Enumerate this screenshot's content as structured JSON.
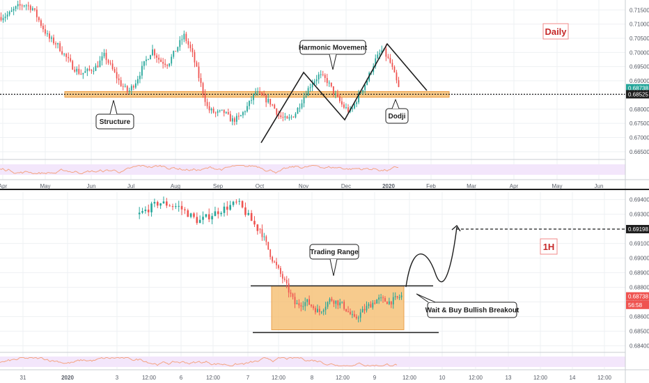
{
  "colors": {
    "up": "#26a69a",
    "down": "#ef5350",
    "zone_fill": "#f6c27a",
    "zone_stroke": "#e8912e",
    "rsi_band": "#f3e6fb",
    "rsi_line": "#f4a582",
    "grid": "#eef0f3",
    "axis_text": "#555a64",
    "label_red": "#c62828"
  },
  "chart_data": [
    {
      "type": "candlestick",
      "name": "daily-panel",
      "timeframe_label": "Daily",
      "x_tick_labels": [
        "Apr",
        "May",
        "Jun",
        "Jul",
        "Aug",
        "Sep",
        "Oct",
        "Nov",
        "Dec",
        "2020",
        "Feb",
        "Mar",
        "Apr",
        "May",
        "Jun"
      ],
      "y_tick_labels": [
        "0.71500",
        "0.71000",
        "0.70500",
        "0.70000",
        "0.69500",
        "0.69000",
        "0.68500",
        "0.68000",
        "0.67500",
        "0.67000",
        "0.66500"
      ],
      "ylim": [
        0.6625,
        0.7185
      ],
      "price_tags": [
        {
          "value": 0.68738,
          "label": "0.68738",
          "color": "#26a69a"
        },
        {
          "value": 0.68525,
          "label": "0.68525",
          "color": "#1e1e1e"
        }
      ],
      "support_zone": [
        0.6842,
        0.6862
      ],
      "support_level": 0.68525,
      "annotations": [
        "Structure",
        "Harmonic Movement",
        "Dodji"
      ],
      "closes_by_week": [
        {
          "week": 1,
          "close": 0.7125
        },
        {
          "week": 2,
          "close": 0.7135
        },
        {
          "week": 3,
          "close": 0.716
        },
        {
          "week": 4,
          "close": 0.717
        },
        {
          "week": 5,
          "close": 0.7155
        },
        {
          "week": 6,
          "close": 0.71
        },
        {
          "week": 7,
          "close": 0.705
        },
        {
          "week": 8,
          "close": 0.703
        },
        {
          "week": 9,
          "close": 0.699
        },
        {
          "week": 10,
          "close": 0.695
        },
        {
          "week": 11,
          "close": 0.6925
        },
        {
          "week": 12,
          "close": 0.6935
        },
        {
          "week": 13,
          "close": 0.695
        },
        {
          "week": 14,
          "close": 0.699
        },
        {
          "week": 15,
          "close": 0.694
        },
        {
          "week": 16,
          "close": 0.689
        },
        {
          "week": 17,
          "close": 0.686
        },
        {
          "week": 18,
          "close": 0.69
        },
        {
          "week": 19,
          "close": 0.696
        },
        {
          "week": 20,
          "close": 0.701
        },
        {
          "week": 21,
          "close": 0.697
        },
        {
          "week": 22,
          "close": 0.696
        },
        {
          "week": 23,
          "close": 0.701
        },
        {
          "week": 24,
          "close": 0.706
        },
        {
          "week": 25,
          "close": 0.7
        },
        {
          "week": 26,
          "close": 0.69
        },
        {
          "week": 27,
          "close": 0.68
        },
        {
          "week": 28,
          "close": 0.6785
        },
        {
          "week": 29,
          "close": 0.679
        },
        {
          "week": 30,
          "close": 0.676
        },
        {
          "week": 31,
          "close": 0.677
        },
        {
          "week": 32,
          "close": 0.681
        },
        {
          "week": 33,
          "close": 0.686
        },
        {
          "week": 34,
          "close": 0.684
        },
        {
          "week": 35,
          "close": 0.682
        },
        {
          "week": 36,
          "close": 0.6775
        },
        {
          "week": 37,
          "close": 0.676
        },
        {
          "week": 38,
          "close": 0.6785
        },
        {
          "week": 39,
          "close": 0.684
        },
        {
          "week": 40,
          "close": 0.689
        },
        {
          "week": 41,
          "close": 0.692
        },
        {
          "week": 42,
          "close": 0.69
        },
        {
          "week": 43,
          "close": 0.685
        },
        {
          "week": 44,
          "close": 0.681
        },
        {
          "week": 45,
          "close": 0.679
        },
        {
          "week": 46,
          "close": 0.685
        },
        {
          "week": 47,
          "close": 0.69
        },
        {
          "week": 48,
          "close": 0.697
        },
        {
          "week": 49,
          "close": 0.701
        },
        {
          "week": 50,
          "close": 0.696
        },
        {
          "week": 51,
          "close": 0.6874
        }
      ]
    },
    {
      "type": "candlestick",
      "name": "1h-panel",
      "timeframe_label": "1H",
      "x_tick_labels": [
        "31",
        "2020",
        "3",
        "12:00",
        "6",
        "12:00",
        "7",
        "12:00",
        "8",
        "12:00",
        "9",
        "12:00",
        "10",
        "12:00",
        "13",
        "12:00",
        "14",
        "12:00"
      ],
      "y_tick_labels": [
        "0.69400",
        "0.69300",
        "0.69200",
        "0.69100",
        "0.69000",
        "0.68900",
        "0.68800",
        "0.68700",
        "0.68600",
        "0.68500",
        "0.68400"
      ],
      "ylim": [
        0.6836,
        0.6946
      ],
      "price_tags": [
        {
          "value": 0.69198,
          "label": "0.69198",
          "color": "#1e1e1e"
        },
        {
          "value": 0.68738,
          "label": "0.68738",
          "color": "#ef5350"
        },
        {
          "value": 0.6868,
          "label": "56:58",
          "color": "#ef5350"
        }
      ],
      "trading_range": [
        0.6851,
        0.6881
      ],
      "target_level": 0.69198,
      "annotations": [
        "Trading Range",
        "Wait & Buy Bullish Breakout"
      ],
      "closes_by_bar_group": [
        {
          "group": 1,
          "close": 0.693
        },
        {
          "group": 2,
          "close": 0.6938
        },
        {
          "group": 3,
          "close": 0.6935
        },
        {
          "group": 4,
          "close": 0.6925
        },
        {
          "group": 5,
          "close": 0.6932
        },
        {
          "group": 6,
          "close": 0.6938
        },
        {
          "group": 7,
          "close": 0.692
        },
        {
          "group": 8,
          "close": 0.69
        },
        {
          "group": 9,
          "close": 0.6885
        },
        {
          "group": 10,
          "close": 0.6868
        },
        {
          "group": 11,
          "close": 0.687
        },
        {
          "group": 12,
          "close": 0.6863
        },
        {
          "group": 13,
          "close": 0.6872
        },
        {
          "group": 14,
          "close": 0.6868
        },
        {
          "group": 15,
          "close": 0.6858
        },
        {
          "group": 16,
          "close": 0.6866
        },
        {
          "group": 17,
          "close": 0.6872
        },
        {
          "group": 18,
          "close": 0.687
        },
        {
          "group": 19,
          "close": 0.6874
        }
      ]
    }
  ]
}
